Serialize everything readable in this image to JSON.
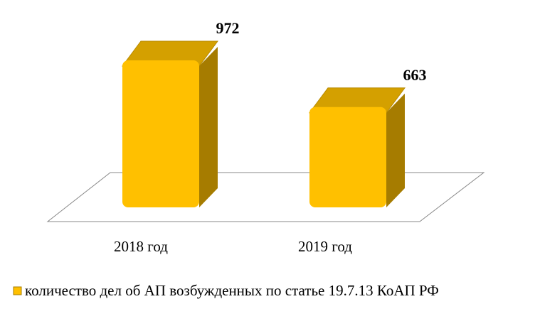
{
  "chart_data": {
    "type": "bar",
    "categories": [
      "2018 год",
      "2019 год"
    ],
    "series": [
      {
        "name": "количество дел об АП возбужденных по статье 19.7.13 КоАП РФ",
        "values": [
          972,
          663
        ]
      }
    ],
    "data_labels": [
      "972",
      "663"
    ],
    "ylim": [
      0,
      972
    ],
    "grid": false,
    "legend_position": "bottom",
    "colors": {
      "front": "#FFC000",
      "top": "#D4A000",
      "side": "#A67C00",
      "floor_stroke": "#888888"
    },
    "three_d": true
  }
}
